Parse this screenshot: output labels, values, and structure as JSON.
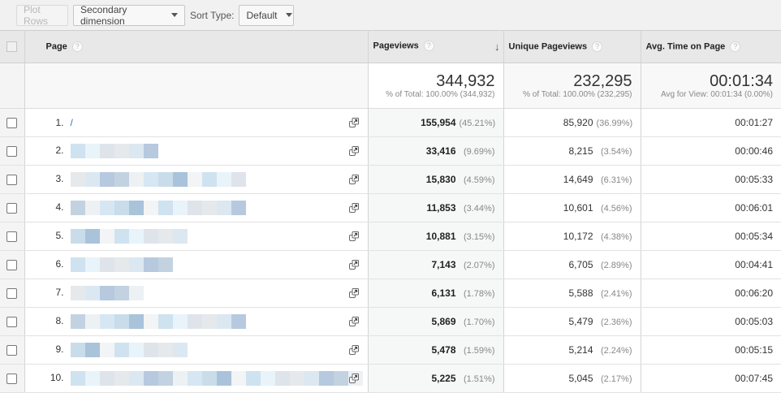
{
  "toolbar": {
    "plot_rows": "Plot Rows",
    "secondary_dimension": "Secondary dimension",
    "sort_type_label": "Sort Type:",
    "sort_type_value": "Default"
  },
  "columns": {
    "page": "Page",
    "pageviews": "Pageviews",
    "unique_pageviews": "Unique Pageviews",
    "avg_time": "Avg. Time on Page",
    "help": "?",
    "sort_arrow": "↓"
  },
  "totals": {
    "pageviews": "344,932",
    "pageviews_sub": "% of Total: 100.00% (344,932)",
    "unique_pageviews": "232,295",
    "unique_pageviews_sub": "% of Total: 100.00% (232,295)",
    "avg_time": "00:01:34",
    "avg_time_sub": "Avg for View: 00:01:34 (0.00%)"
  },
  "rows": [
    {
      "rank": "1.",
      "page": "/",
      "pageviews": "155,954",
      "pv_pct": "(45.21%)",
      "unique": "85,920",
      "u_pct": "(36.99%)",
      "avg": "00:01:27"
    },
    {
      "rank": "2.",
      "page": "",
      "pageviews": "33,416",
      "pv_pct": "(9.69%)",
      "unique": "8,215",
      "u_pct": "(3.54%)",
      "avg": "00:00:46"
    },
    {
      "rank": "3.",
      "page": "",
      "pageviews": "15,830",
      "pv_pct": "(4.59%)",
      "unique": "14,649",
      "u_pct": "(6.31%)",
      "avg": "00:05:33"
    },
    {
      "rank": "4.",
      "page": "",
      "pageviews": "11,853",
      "pv_pct": "(3.44%)",
      "unique": "10,601",
      "u_pct": "(4.56%)",
      "avg": "00:06:01"
    },
    {
      "rank": "5.",
      "page": "",
      "pageviews": "10,881",
      "pv_pct": "(3.15%)",
      "unique": "10,172",
      "u_pct": "(4.38%)",
      "avg": "00:05:34"
    },
    {
      "rank": "6.",
      "page": "",
      "pageviews": "7,143",
      "pv_pct": "(2.07%)",
      "unique": "6,705",
      "u_pct": "(2.89%)",
      "avg": "00:04:41"
    },
    {
      "rank": "7.",
      "page": "",
      "pageviews": "6,131",
      "pv_pct": "(1.78%)",
      "unique": "5,588",
      "u_pct": "(2.41%)",
      "avg": "00:06:20"
    },
    {
      "rank": "8.",
      "page": "",
      "pageviews": "5,869",
      "pv_pct": "(1.70%)",
      "unique": "5,479",
      "u_pct": "(2.36%)",
      "avg": "00:05:03"
    },
    {
      "rank": "9.",
      "page": "",
      "pageviews": "5,478",
      "pv_pct": "(1.59%)",
      "unique": "5,214",
      "u_pct": "(2.24%)",
      "avg": "00:05:15"
    },
    {
      "rank": "10.",
      "page": "",
      "pageviews": "5,225",
      "pv_pct": "(1.51%)",
      "unique": "5,045",
      "u_pct": "(2.17%)",
      "avg": "00:07:45"
    }
  ],
  "redacted_widths": [
    0,
    6,
    12,
    12,
    8,
    7,
    5,
    12,
    8,
    20
  ],
  "colors": {
    "link": "#3b6cbf",
    "header_bg": "#e8e8e8",
    "toolbar_bg": "#f1f1f1"
  }
}
